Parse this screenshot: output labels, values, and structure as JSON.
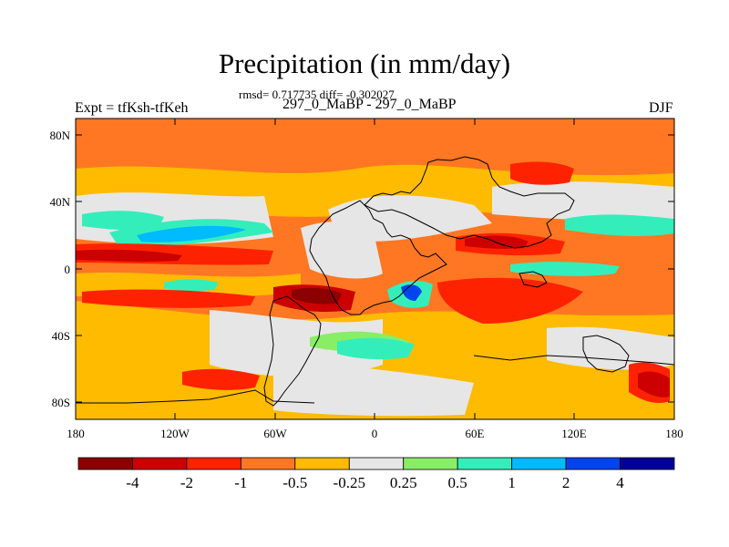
{
  "title": "Precipitation (in mm/day)",
  "stats": "rmsd= 0.717735 diff= -0.302027",
  "left_label": "Expt = tfKsh-tfKeh",
  "center_label": "297_0_MaBP - 297_0_MaBP",
  "right_label": "DJF",
  "lat_ticks": [
    "80N",
    "40N",
    "0",
    "40S",
    "80S"
  ],
  "lon_ticks": [
    "180",
    "120W",
    "60W",
    "0",
    "60E",
    "120E",
    "180"
  ],
  "colorbar": {
    "colors": [
      "#8b0000",
      "#cc0000",
      "#ff2200",
      "#ff7722",
      "#ffbb00",
      "#e6e6e6",
      "#88ee66",
      "#33eebb",
      "#00bbff",
      "#0044ee",
      "#000099"
    ],
    "labels": [
      "-4",
      "-2",
      "-1",
      "-0.5",
      "-0.25",
      "0.25",
      "0.5",
      "1",
      "2",
      "4"
    ]
  },
  "colors": {
    "dark_red": "#8b0000",
    "red": "#cc0000",
    "red_orange": "#ff2200",
    "orange": "#ff7722",
    "yellow_orange": "#ffbb00",
    "neutral": "#e6e6e6",
    "light_green": "#88ee66",
    "aqua": "#33eebb",
    "sky_blue": "#00bbff",
    "blue": "#0044ee",
    "navy": "#000099"
  }
}
